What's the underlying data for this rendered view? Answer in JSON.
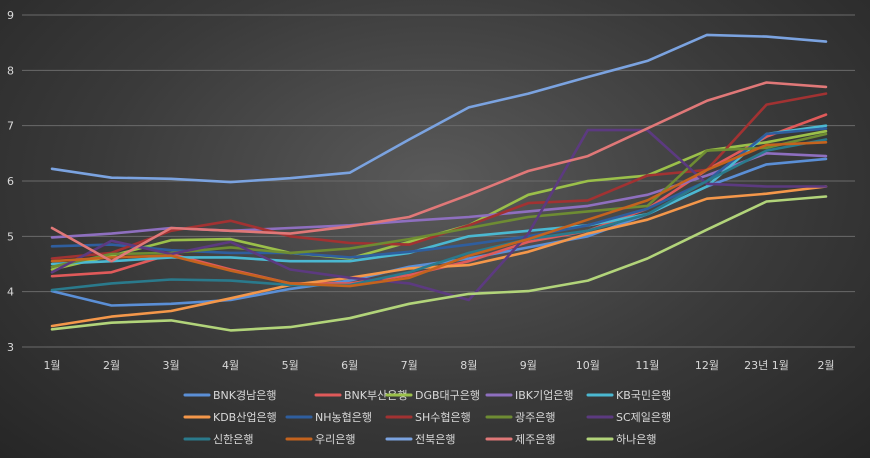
{
  "chart_data": {
    "type": "line",
    "title": "",
    "xlabel": "",
    "ylabel": "",
    "ylim": [
      3,
      9
    ],
    "y_ticks": [
      "3",
      "4",
      "5",
      "6",
      "7",
      "8",
      "9"
    ],
    "grid": true,
    "legend_position": "bottom",
    "categories": [
      "1월",
      "2월",
      "3월",
      "4월",
      "5월",
      "6월",
      "7월",
      "8월",
      "9월",
      "10월",
      "11월",
      "12월",
      "23년 1월",
      "2월"
    ],
    "series": [
      {
        "name": "BNK경남은행",
        "color": "#5b8fd6",
        "values": [
          4.01,
          3.75,
          3.78,
          3.85,
          4.05,
          4.2,
          4.45,
          4.6,
          4.8,
          5.0,
          5.4,
          5.9,
          6.3,
          6.4
        ]
      },
      {
        "name": "BNK부산은행",
        "color": "#e05a5a",
        "values": [
          4.28,
          4.35,
          4.68,
          4.4,
          4.15,
          4.15,
          4.3,
          4.55,
          4.9,
          5.1,
          5.5,
          6.2,
          6.8,
          7.2
        ]
      },
      {
        "name": "DGB대구은행",
        "color": "#9bc04a",
        "values": [
          4.4,
          4.65,
          4.93,
          4.95,
          4.7,
          4.6,
          4.9,
          5.2,
          5.75,
          6.0,
          6.1,
          6.55,
          6.7,
          6.9
        ]
      },
      {
        "name": "IBK기업은행",
        "color": "#8e6fbf",
        "values": [
          4.98,
          5.05,
          5.15,
          5.1,
          5.15,
          5.2,
          5.28,
          5.35,
          5.45,
          5.55,
          5.75,
          6.1,
          6.5,
          6.45
        ]
      },
      {
        "name": "KB국민은행",
        "color": "#4bb8d1",
        "values": [
          4.5,
          4.55,
          4.62,
          4.62,
          4.55,
          4.55,
          4.7,
          5.0,
          5.1,
          5.2,
          5.4,
          5.9,
          6.85,
          7.0
        ]
      },
      {
        "name": "KDB산업은행",
        "color": "#f4974a",
        "values": [
          3.38,
          3.55,
          3.65,
          3.88,
          4.12,
          4.25,
          4.42,
          4.48,
          4.72,
          5.05,
          5.3,
          5.68,
          5.77,
          5.9
        ]
      },
      {
        "name": "NH농협은행",
        "color": "#2f5e9e",
        "values": [
          4.82,
          4.85,
          4.75,
          4.7,
          4.7,
          4.62,
          4.72,
          4.85,
          5.0,
          5.2,
          5.5,
          6.0,
          6.85,
          6.95
        ]
      },
      {
        "name": "SH수협은행",
        "color": "#a23232",
        "values": [
          4.6,
          4.7,
          5.1,
          5.28,
          5.0,
          4.88,
          4.85,
          5.2,
          5.6,
          5.65,
          6.1,
          6.2,
          7.38,
          7.58
        ]
      },
      {
        "name": "광주은행",
        "color": "#6e8c33",
        "values": [
          4.45,
          4.68,
          4.7,
          4.8,
          4.7,
          4.78,
          4.95,
          5.15,
          5.35,
          5.45,
          5.55,
          6.55,
          6.6,
          6.85
        ]
      },
      {
        "name": "SC제일은행",
        "color": "#5c3a80",
        "values": [
          4.35,
          4.92,
          4.68,
          4.9,
          4.4,
          4.25,
          4.15,
          3.85,
          5.05,
          6.92,
          6.92,
          5.95,
          5.9,
          5.9
        ]
      },
      {
        "name": "신한은행",
        "color": "#2a7a8c",
        "values": [
          4.03,
          4.15,
          4.22,
          4.2,
          4.12,
          4.12,
          4.35,
          4.7,
          4.95,
          5.1,
          5.4,
          6.0,
          6.55,
          6.75
        ]
      },
      {
        "name": "우리은행",
        "color": "#c4631e",
        "values": [
          4.55,
          4.62,
          4.65,
          4.38,
          4.15,
          4.1,
          4.25,
          4.65,
          4.95,
          5.3,
          5.65,
          6.2,
          6.65,
          6.7
        ]
      },
      {
        "name": "전북은행",
        "color": "#7ba3e0",
        "values": [
          6.22,
          6.06,
          6.04,
          5.98,
          6.05,
          6.15,
          6.75,
          7.33,
          7.58,
          7.88,
          8.17,
          8.64,
          8.61,
          8.52
        ]
      },
      {
        "name": "제주은행",
        "color": "#e07878",
        "values": [
          5.15,
          4.55,
          5.15,
          5.1,
          5.05,
          5.18,
          5.35,
          5.75,
          6.18,
          6.45,
          6.95,
          7.45,
          7.78,
          7.7
        ]
      },
      {
        "name": "하나은행",
        "color": "#b2d47a",
        "values": [
          3.32,
          3.44,
          3.48,
          3.3,
          3.36,
          3.52,
          3.78,
          3.96,
          4.01,
          4.2,
          4.6,
          5.12,
          5.63,
          5.72
        ]
      }
    ]
  }
}
